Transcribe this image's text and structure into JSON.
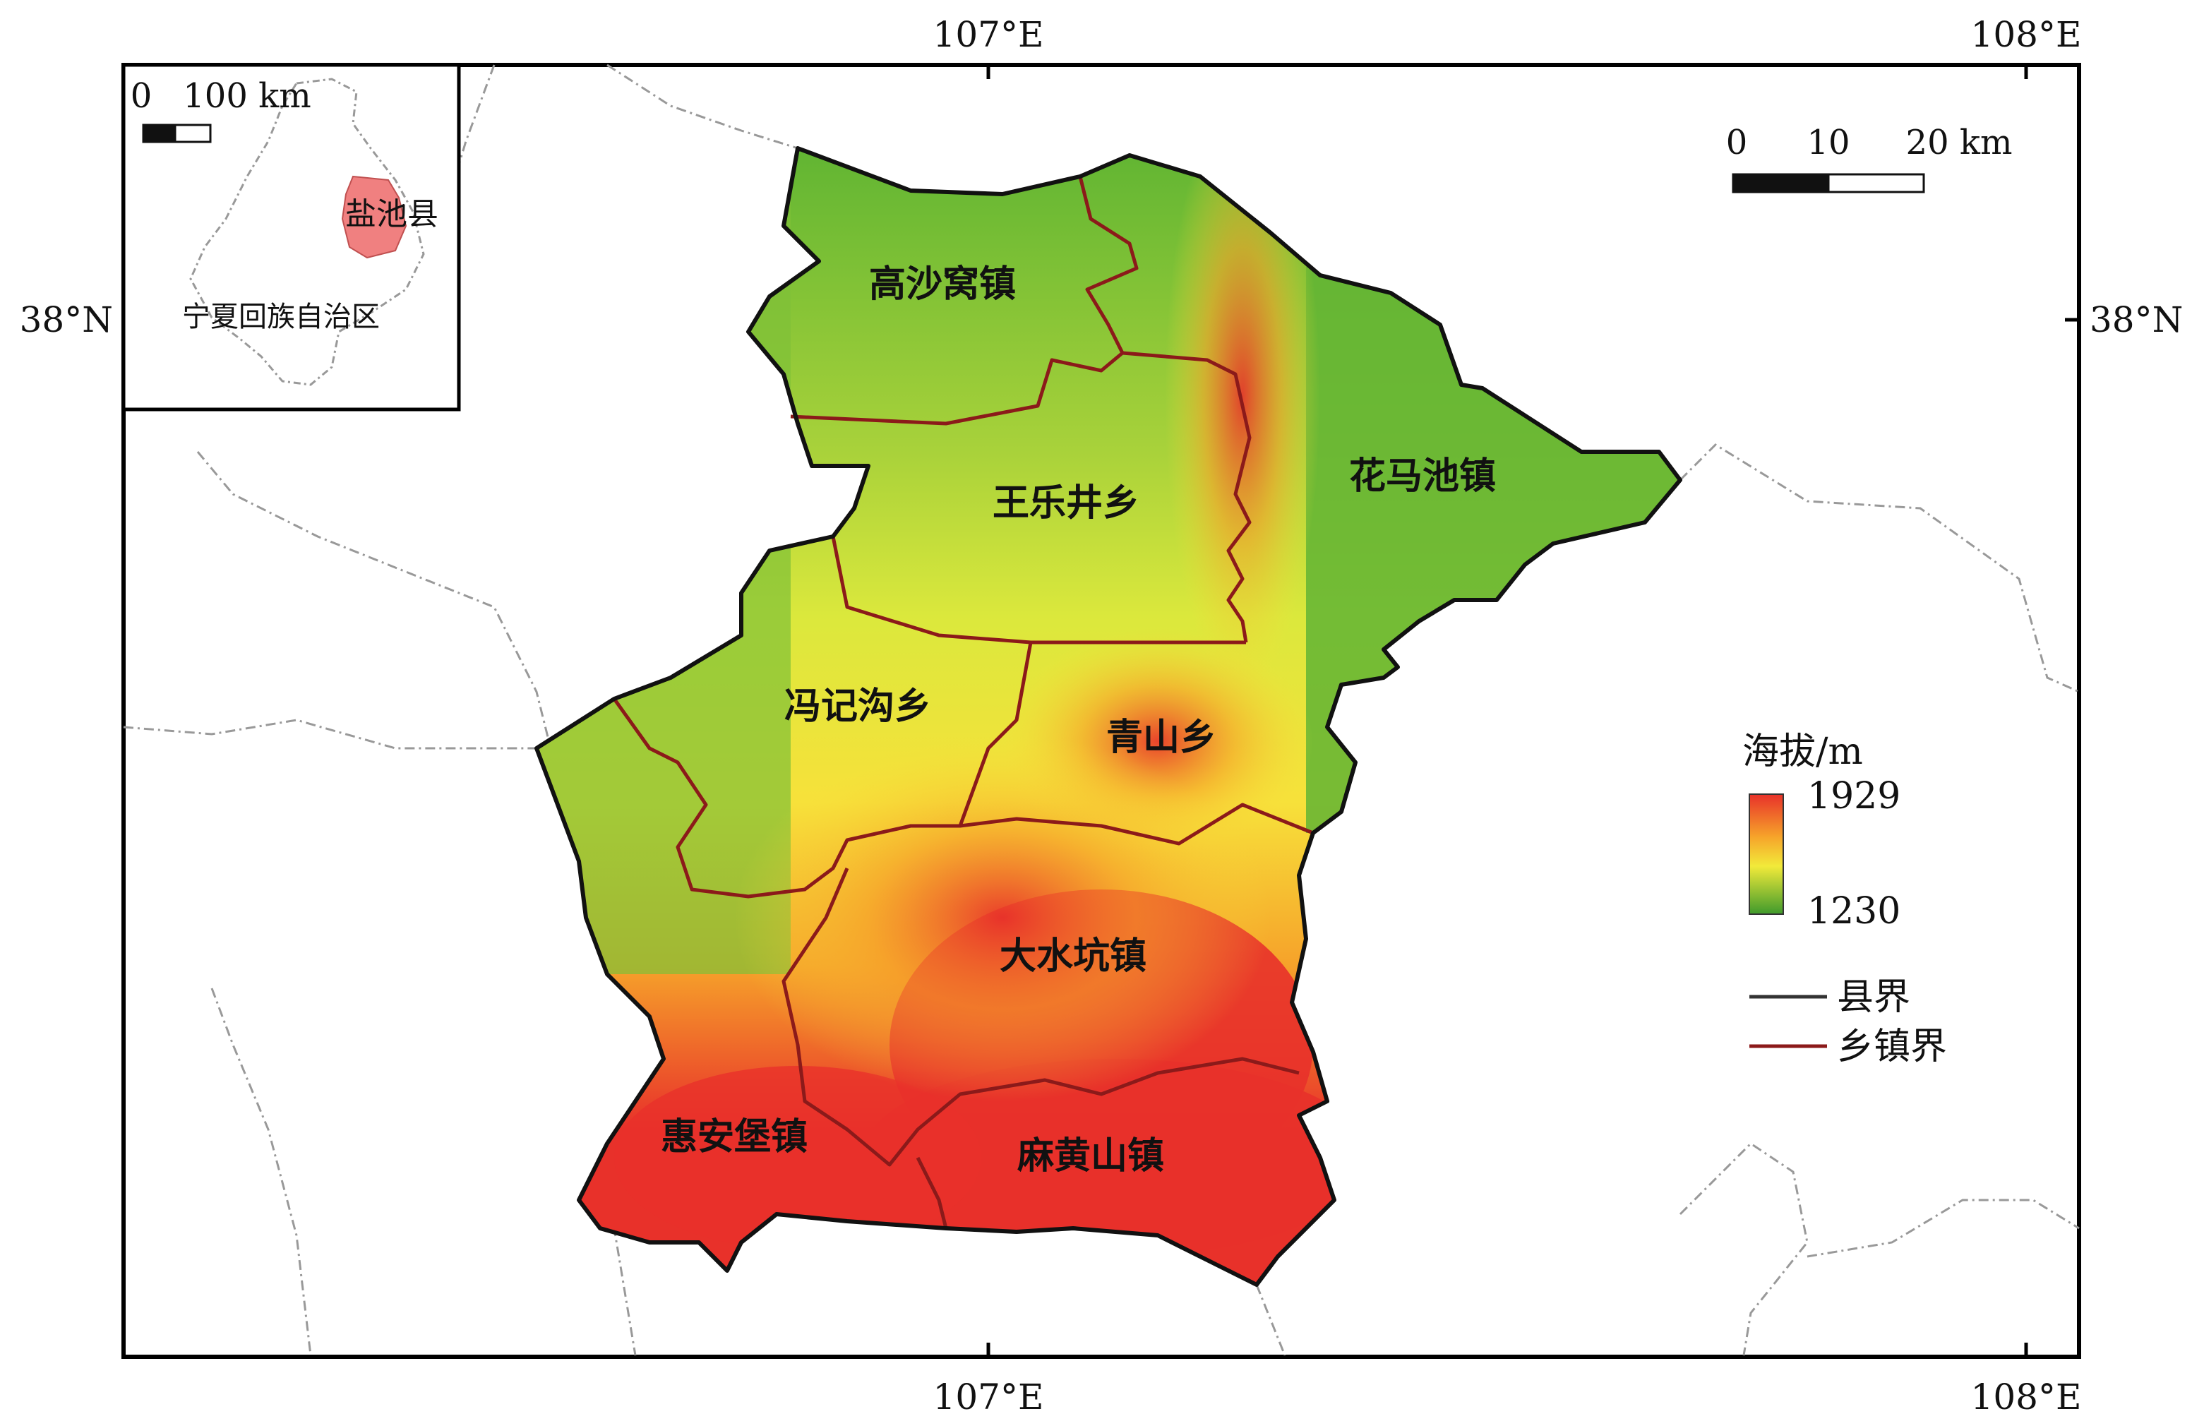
{
  "graticule": {
    "lon_107": "107°E",
    "lon_108": "108°E",
    "lat_38": "38°N"
  },
  "towns": [
    {
      "key": "gaoshawo",
      "label": "高沙窝镇"
    },
    {
      "key": "wangle",
      "label": "王乐井乡"
    },
    {
      "key": "huamachi",
      "label": "花马池镇"
    },
    {
      "key": "fengji",
      "label": "冯记沟乡"
    },
    {
      "key": "qingshan",
      "label": "青山乡"
    },
    {
      "key": "dashuikeng",
      "label": "大水坑镇"
    },
    {
      "key": "huianbao",
      "label": "惠安堡镇"
    },
    {
      "key": "mahuangshan",
      "label": "麻黄山镇"
    }
  ],
  "main_scale": {
    "ticks": [
      "0",
      "10",
      "20 km"
    ]
  },
  "legend": {
    "title": "海拔/m",
    "max": "1929",
    "min": "1230",
    "county_boundary": "县界",
    "town_boundary": "乡镇界",
    "colors": {
      "high": "#e8312a",
      "mid_high": "#f6a22a",
      "mid": "#f2ea3a",
      "low": "#4ea82e",
      "county_line": "#333333",
      "town_line": "#8b1a1a"
    }
  },
  "inset": {
    "scale_ticks": [
      "0",
      "100 km"
    ],
    "county_label": "盐池县",
    "region_label": "宁夏回族自治区",
    "highlight_color": "#f08080"
  }
}
